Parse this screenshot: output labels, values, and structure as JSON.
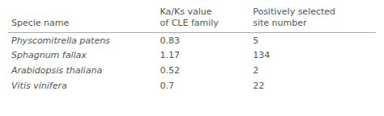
{
  "chart_data": {
    "type": "table",
    "columns": [
      "Specie name",
      "Ka/Ks value\nof CLE family",
      "Positively selected\nsite number"
    ],
    "rows": [
      [
        "Physcomitrella patens",
        "0.83",
        "5"
      ],
      [
        "Sphagnum fallax",
        "1.17",
        "134"
      ],
      [
        "Arabidopsis thaliana",
        "0.52",
        "2"
      ],
      [
        "Vitis vinifera",
        "0.7",
        "22"
      ]
    ],
    "color": "#555555"
  }
}
